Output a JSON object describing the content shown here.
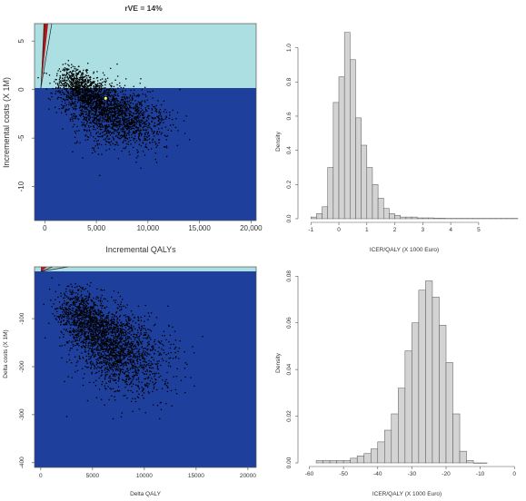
{
  "figure_title": "rVE = 14%",
  "colors": {
    "upper_region": "#acdfe2",
    "lower_region": "#1f3f9c",
    "points": "#000000",
    "bars": "#d3d3d3",
    "bar_edge": "#555555",
    "threshold_red": "#b01818",
    "highlight": "#ffff66"
  },
  "chart_data": [
    {
      "type": "scatter",
      "xlabel": "Incremental QALYs",
      "ylabel": "Incremental costs (X 1M)",
      "xlim": [
        -1000,
        20500
      ],
      "ylim": [
        -13.5,
        6.8
      ],
      "x_ticks": [
        0,
        5000,
        10000,
        15000,
        20000
      ],
      "x_tick_labels": [
        "0",
        "5,000",
        "10,000",
        "15,000",
        "20,000"
      ],
      "y_ticks": [
        5,
        0,
        -5,
        -10
      ],
      "y_tick_labels": [
        "5",
        "0",
        "-5",
        "-10"
      ],
      "cloud": {
        "n": 2600,
        "x_from": 2200,
        "x_to": 8800,
        "y_from": 1.3,
        "y_to": -4.4,
        "x_spread": 2400,
        "y_spread": 1.15
      },
      "highlight_point": [
        5900,
        -0.9
      ]
    },
    {
      "type": "bar",
      "xlabel": "ICER/QALY (X 1000 Euro)",
      "ylabel": "Density",
      "xlim": [
        -1.3,
        6.4
      ],
      "ylim": [
        0,
        1.12
      ],
      "x_ticks": [
        -1,
        0,
        1,
        2,
        3,
        4,
        5
      ],
      "y_ticks": [
        0.0,
        0.2,
        0.4,
        0.6,
        0.8,
        1.0
      ],
      "y_tick_labels": [
        "0.0",
        "0.2",
        "0.4",
        "0.6",
        "0.8",
        "1.0"
      ],
      "bin_start": -1.0,
      "bin_width": 0.2,
      "values": [
        0.01,
        0.03,
        0.07,
        0.3,
        0.68,
        0.83,
        1.09,
        0.93,
        0.59,
        0.43,
        0.3,
        0.2,
        0.12,
        0.06,
        0.03,
        0.02,
        0.01,
        0.01,
        0.01,
        0.005,
        0.005,
        0.005,
        0.003,
        0.003,
        0.002,
        0.002,
        0.002,
        0.002,
        0.002,
        0.002,
        0.002,
        0.002,
        0.002,
        0.002,
        0.002,
        0.002,
        0.002
      ]
    },
    {
      "type": "scatter",
      "xlabel": "Delta QALY",
      "ylabel": "Delta costs (X 1M)",
      "xlim": [
        -600,
        20800
      ],
      "ylim": [
        -410,
        8
      ],
      "x_ticks": [
        0,
        5000,
        10000,
        15000,
        20000
      ],
      "x_tick_labels": [
        "0",
        "5000",
        "10000",
        "15000",
        "20000"
      ],
      "y_ticks": [
        -100,
        -200,
        -300,
        -400
      ],
      "y_tick_labels": [
        "-100",
        "-200",
        "-300",
        "-400"
      ],
      "cloud": {
        "n": 2600,
        "x_from": 2800,
        "x_to": 9800,
        "y_from": -68,
        "y_to": -205,
        "x_spread": 2500,
        "y_spread": 36
      }
    },
    {
      "type": "bar",
      "xlabel": "ICER/QALY (X 1000 Euro)",
      "ylabel": "Density",
      "xlim": [
        -62,
        1
      ],
      "ylim": [
        0,
        0.084
      ],
      "x_ticks": [
        -60,
        -50,
        -40,
        -30,
        -20,
        -10,
        0
      ],
      "y_ticks": [
        0.0,
        0.02,
        0.04,
        0.06,
        0.08
      ],
      "y_tick_labels": [
        "0.00",
        "0.02",
        "0.04",
        "0.06",
        "0.08"
      ],
      "bin_start": -58,
      "bin_width": 2,
      "values": [
        0.001,
        0.001,
        0.001,
        0.001,
        0.001,
        0.002,
        0.003,
        0.004,
        0.006,
        0.009,
        0.014,
        0.021,
        0.032,
        0.048,
        0.06,
        0.074,
        0.078,
        0.071,
        0.059,
        0.043,
        0.021,
        0.005,
        0.001,
        0.0,
        0.0
      ]
    }
  ]
}
